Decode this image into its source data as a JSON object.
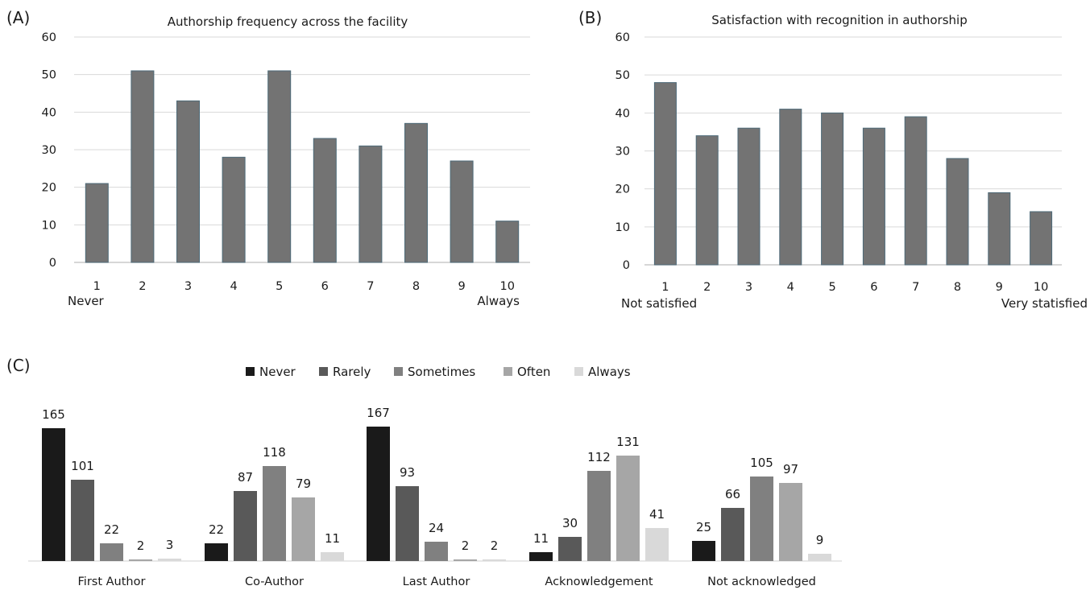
{
  "panels": {
    "a_letter": "(A)",
    "b_letter": "(B)",
    "c_letter": "(C)"
  },
  "chart_data": [
    {
      "type": "bar",
      "title": "Authorship frequency across the facility",
      "categories": [
        "1",
        "2",
        "3",
        "4",
        "5",
        "6",
        "7",
        "8",
        "9",
        "10"
      ],
      "values": [
        21,
        51,
        43,
        28,
        51,
        33,
        31,
        37,
        27,
        11
      ],
      "ylim": [
        0,
        60
      ],
      "yticks": [
        0,
        10,
        20,
        30,
        40,
        50,
        60
      ],
      "grid": true,
      "anchor_labels": {
        "low": "Never",
        "high": "Always"
      },
      "bar_color": "#737373",
      "bar_edge": "#4d6a78"
    },
    {
      "type": "bar",
      "title": "Satisfaction with recognition in authorship",
      "categories": [
        "1",
        "2",
        "3",
        "4",
        "5",
        "6",
        "7",
        "8",
        "9",
        "10"
      ],
      "values": [
        48,
        34,
        36,
        41,
        40,
        36,
        39,
        28,
        19,
        14
      ],
      "ylim": [
        0,
        60
      ],
      "yticks": [
        0,
        10,
        20,
        30,
        40,
        50,
        60
      ],
      "grid": true,
      "anchor_labels": {
        "low": "Not satisfied",
        "high": "Very statisfied"
      },
      "bar_color": "#737373",
      "bar_edge": "#4d6a78"
    },
    {
      "type": "bar",
      "categories": [
        "First Author",
        "Co-Author",
        "Last Author",
        "Acknowledgement",
        "Not acknowledged"
      ],
      "series": [
        {
          "name": "Never",
          "values": [
            165,
            22,
            167,
            11,
            25
          ],
          "color": "#1a1a1a"
        },
        {
          "name": "Rarely",
          "values": [
            101,
            87,
            93,
            30,
            66
          ],
          "color": "#595959"
        },
        {
          "name": "Sometimes",
          "values": [
            22,
            118,
            24,
            112,
            105
          ],
          "color": "#808080"
        },
        {
          "name": "Often",
          "values": [
            2,
            79,
            2,
            131,
            97
          ],
          "color": "#a6a6a6"
        },
        {
          "name": "Always",
          "values": [
            3,
            11,
            2,
            41,
            9
          ],
          "color": "#d9d9d9"
        }
      ],
      "data_labels": true,
      "legend_position": "top",
      "grid": false
    }
  ]
}
